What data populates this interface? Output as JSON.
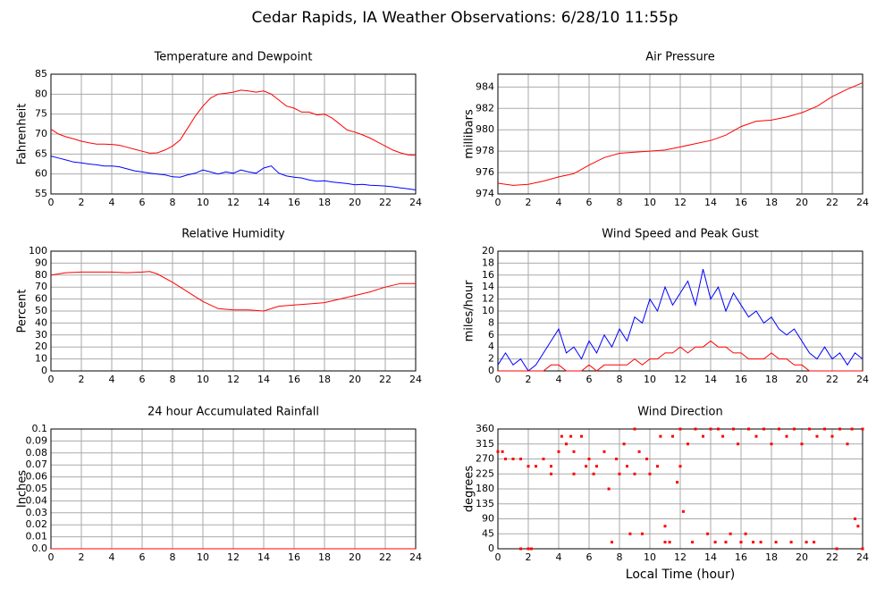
{
  "title": "Cedar Rapids, IA Weather Observations: 6/28/10 11:55p",
  "chart_data": [
    {
      "type": "line",
      "title": "Temperature and Dewpoint",
      "ylabel": "Fahrenheit",
      "x": [
        0,
        0.5,
        1,
        1.5,
        2,
        2.5,
        3,
        3.5,
        4,
        4.5,
        5,
        5.5,
        6,
        6.5,
        7,
        7.5,
        8,
        8.5,
        9,
        9.5,
        10,
        10.5,
        11,
        11.5,
        12,
        12.5,
        13,
        13.5,
        14,
        14.5,
        15,
        15.5,
        16,
        16.5,
        17,
        17.5,
        18,
        18.5,
        19,
        19.5,
        20,
        20.5,
        21,
        21.5,
        22,
        22.5,
        23,
        23.5,
        24
      ],
      "series": [
        {
          "color": "#ff0000",
          "values": [
            71.2,
            70,
            69.3,
            68.8,
            68.2,
            67.8,
            67.5,
            67.5,
            67.4,
            67.2,
            66.7,
            66.2,
            65.7,
            65.2,
            65.3,
            66,
            67,
            68.5,
            71.5,
            74.5,
            77,
            79,
            80,
            80.2,
            80.5,
            81,
            80.8,
            80.5,
            80.8,
            80,
            78.5,
            77,
            76.5,
            75.5,
            75.5,
            74.8,
            75,
            74,
            72.5,
            71,
            70.5,
            69.8,
            69,
            68,
            67,
            66,
            65.3,
            64.8,
            64.7
          ]
        },
        {
          "color": "#0000ff",
          "values": [
            64.5,
            64,
            63.5,
            63,
            62.8,
            62.5,
            62.3,
            62,
            62,
            61.8,
            61.3,
            60.8,
            60.5,
            60.2,
            60,
            59.8,
            59.3,
            59.2,
            59.8,
            60.2,
            61,
            60.5,
            60,
            60.5,
            60.2,
            61,
            60.5,
            60.2,
            61.5,
            62,
            60.2,
            59.5,
            59.2,
            59,
            58.5,
            58.2,
            58.3,
            58,
            57.8,
            57.6,
            57.3,
            57.4,
            57.2,
            57.1,
            57,
            56.8,
            56.5,
            56.3,
            56
          ]
        }
      ],
      "xlim": [
        0,
        24
      ],
      "xticks": [
        0,
        2,
        4,
        6,
        8,
        10,
        12,
        14,
        16,
        18,
        20,
        22,
        24
      ],
      "ylim": [
        55,
        85
      ],
      "yticks": [
        55,
        60,
        65,
        70,
        75,
        80,
        85
      ],
      "grid": true
    },
    {
      "type": "line",
      "title": "Air Pressure",
      "ylabel": "millibars",
      "x": [
        0,
        1,
        2,
        3,
        4,
        5,
        6,
        7,
        8,
        9,
        10,
        11,
        12,
        13,
        14,
        15,
        16,
        17,
        18,
        19,
        20,
        21,
        22,
        23,
        24
      ],
      "series": [
        {
          "color": "#ff0000",
          "values": [
            975,
            974.8,
            974.9,
            975.2,
            975.6,
            975.9,
            976.7,
            977.4,
            977.8,
            977.9,
            978,
            978.1,
            978.4,
            978.7,
            979,
            979.5,
            980.3,
            980.8,
            980.9,
            981.2,
            981.6,
            982.2,
            983.1,
            983.8,
            984.4
          ]
        }
      ],
      "xlim": [
        0,
        24
      ],
      "xticks": [
        0,
        2,
        4,
        6,
        8,
        10,
        12,
        14,
        16,
        18,
        20,
        22,
        24
      ],
      "ylim": [
        974,
        985.2
      ],
      "yticks": [
        974,
        976,
        978,
        980,
        982,
        984
      ],
      "grid": true
    },
    {
      "type": "line",
      "title": "Relative Humidity",
      "ylabel": "Percent",
      "x": [
        0,
        1,
        2,
        3,
        4,
        5,
        6,
        6.5,
        7,
        8,
        9,
        10,
        11,
        12,
        13,
        14,
        15,
        16,
        17,
        18,
        19,
        20,
        21,
        22,
        23,
        24
      ],
      "series": [
        {
          "color": "#ff0000",
          "values": [
            80,
            82,
            82.5,
            82.5,
            82.5,
            82,
            82.5,
            83,
            81,
            74,
            66,
            58,
            52,
            51,
            51,
            50,
            54,
            55,
            56,
            57,
            60,
            63,
            66,
            70,
            73,
            73
          ]
        }
      ],
      "xlim": [
        0,
        24
      ],
      "xticks": [
        0,
        2,
        4,
        6,
        8,
        10,
        12,
        14,
        16,
        18,
        20,
        22,
        24
      ],
      "ylim": [
        0,
        100
      ],
      "yticks": [
        0,
        10,
        20,
        30,
        40,
        50,
        60,
        70,
        80,
        90,
        100
      ],
      "grid": true
    },
    {
      "type": "line",
      "title": "Wind Speed and Peak Gust",
      "ylabel": "miles/hour",
      "x": [
        0,
        0.5,
        1,
        1.5,
        2,
        2.5,
        3,
        3.5,
        4,
        4.5,
        5,
        5.5,
        6,
        6.5,
        7,
        7.5,
        8,
        8.5,
        9,
        9.5,
        10,
        10.5,
        11,
        11.5,
        12,
        12.5,
        13,
        13.5,
        14,
        14.5,
        15,
        15.5,
        16,
        16.5,
        17,
        17.5,
        18,
        18.5,
        19,
        19.5,
        20,
        20.5,
        21,
        21.5,
        22,
        22.5,
        23,
        23.5,
        24
      ],
      "series": [
        {
          "color": "#0000ff",
          "values": [
            1,
            3,
            1,
            2,
            0,
            1,
            3,
            5,
            7,
            3,
            4,
            2,
            5,
            3,
            6,
            4,
            7,
            5,
            9,
            8,
            12,
            10,
            14,
            11,
            13,
            15,
            11,
            17,
            12,
            14,
            10,
            13,
            11,
            9,
            10,
            8,
            9,
            7,
            6,
            7,
            5,
            3,
            2,
            4,
            2,
            3,
            1,
            3,
            2
          ]
        },
        {
          "color": "#ff0000",
          "values": [
            0,
            0,
            0,
            0,
            0,
            0,
            0,
            1,
            1,
            0,
            0,
            0,
            1,
            0,
            1,
            1,
            1,
            1,
            2,
            1,
            2,
            2,
            3,
            3,
            4,
            3,
            4,
            4,
            5,
            4,
            4,
            3,
            3,
            2,
            2,
            2,
            3,
            2,
            2,
            1,
            1,
            0,
            0,
            0,
            0,
            0,
            0,
            0,
            0
          ]
        }
      ],
      "xlim": [
        0,
        24
      ],
      "xticks": [
        0,
        2,
        4,
        6,
        8,
        10,
        12,
        14,
        16,
        18,
        20,
        22,
        24
      ],
      "ylim": [
        0,
        20
      ],
      "yticks": [
        0,
        2,
        4,
        6,
        8,
        10,
        12,
        14,
        16,
        18,
        20
      ],
      "grid": true
    },
    {
      "type": "line",
      "title": "24 hour Accumulated Rainfall",
      "ylabel": "Inches",
      "x": [
        0,
        24
      ],
      "series": [
        {
          "color": "#ff0000",
          "values": [
            0,
            0
          ]
        }
      ],
      "xlim": [
        0,
        24
      ],
      "xticks": [
        0,
        2,
        4,
        6,
        8,
        10,
        12,
        14,
        16,
        18,
        20,
        22,
        24
      ],
      "ylim": [
        0,
        0.1
      ],
      "yticks": [
        {
          "value": 0,
          "label": "0.0"
        },
        0.01,
        0.02,
        0.03,
        0.04,
        0.05,
        0.06,
        0.07,
        0.08,
        0.09,
        0.1
      ],
      "grid": true
    },
    {
      "type": "scatter",
      "title": "Wind Direction",
      "ylabel": "degrees",
      "xlabel": "Local Time (hour)",
      "x": [
        0,
        0.3,
        0.5,
        1,
        1.5,
        1.5,
        2,
        2.2,
        2,
        2.5,
        3,
        3.5,
        3.5,
        4,
        4.2,
        4.5,
        4.8,
        5,
        5,
        5.5,
        5.8,
        6,
        6.3,
        6.5,
        7,
        7.3,
        7.5,
        7.8,
        8,
        8.3,
        8.5,
        8.7,
        9,
        9,
        9.3,
        9.5,
        9.8,
        10,
        10.5,
        10.7,
        11,
        11,
        11.3,
        11.5,
        11.8,
        12,
        12,
        12.2,
        12.5,
        12.8,
        13,
        13.5,
        13.8,
        14,
        14.3,
        14.5,
        14.8,
        15,
        15.3,
        15.5,
        15.8,
        16,
        16.3,
        16.5,
        16.8,
        17,
        17.3,
        17.5,
        18,
        18.3,
        18.5,
        19,
        19.3,
        19.5,
        20,
        20.3,
        20.5,
        20.8,
        21,
        21.5,
        22,
        22.3,
        22.5,
        23,
        23.3,
        23.5,
        23.7,
        24,
        24
      ],
      "series": [
        {
          "color": "#ff0000",
          "values": [
            292,
            292,
            270,
            270,
            270,
            0,
            0,
            0,
            248,
            248,
            270,
            225,
            248,
            292,
            338,
            315,
            338,
            225,
            292,
            338,
            248,
            270,
            225,
            248,
            292,
            180,
            20,
            270,
            225,
            315,
            248,
            45,
            225,
            360,
            292,
            45,
            270,
            225,
            248,
            338,
            20,
            68,
            20,
            338,
            200,
            360,
            248,
            112,
            315,
            20,
            360,
            338,
            45,
            360,
            20,
            360,
            338,
            20,
            45,
            360,
            315,
            20,
            45,
            360,
            20,
            338,
            20,
            360,
            315,
            20,
            360,
            338,
            20,
            360,
            315,
            20,
            360,
            20,
            338,
            360,
            338,
            0,
            360,
            315,
            360,
            90,
            68,
            0,
            360
          ]
        }
      ],
      "xlim": [
        0,
        24
      ],
      "xticks": [
        0,
        2,
        4,
        6,
        8,
        10,
        12,
        14,
        16,
        18,
        20,
        22,
        24
      ],
      "ylim": [
        0,
        360
      ],
      "yticks": [
        0,
        45,
        90,
        135,
        180,
        225,
        270,
        315,
        360
      ],
      "grid": true
    }
  ]
}
